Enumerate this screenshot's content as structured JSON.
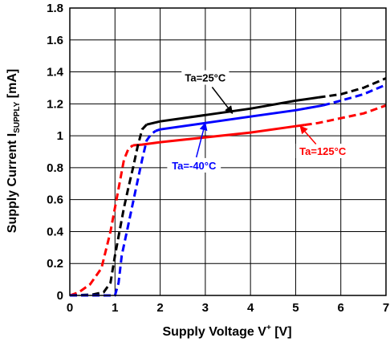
{
  "chart_data": {
    "type": "line",
    "title": "",
    "xlabel": {
      "main": "Supply Voltage V",
      "sup": "+",
      "unit": " [V]"
    },
    "ylabel": {
      "main": "Supply Current I",
      "sub": "SUPPLY",
      "unit": " [mA]"
    },
    "xlim": [
      0,
      7
    ],
    "ylim": [
      0,
      1.8
    ],
    "xticks": [
      "0",
      "1",
      "2",
      "3",
      "4",
      "5",
      "6",
      "7"
    ],
    "yticks": [
      "0",
      "0.2",
      "0.4",
      "0.6",
      "0.8",
      "1",
      "1.2",
      "1.4",
      "1.6",
      "1.8"
    ],
    "grid": true,
    "series": [
      {
        "name": "Ta=125°C",
        "color": "#ff0000",
        "solid_range": [
          1.4,
          5.2
        ],
        "points": [
          [
            0,
            0
          ],
          [
            0.2,
            0.02
          ],
          [
            0.45,
            0.07
          ],
          [
            0.7,
            0.17
          ],
          [
            0.9,
            0.4
          ],
          [
            1.0,
            0.55
          ],
          [
            1.1,
            0.7
          ],
          [
            1.2,
            0.85
          ],
          [
            1.3,
            0.92
          ],
          [
            1.4,
            0.94
          ],
          [
            1.6,
            0.945
          ],
          [
            2,
            0.96
          ],
          [
            3,
            0.99
          ],
          [
            4,
            1.02
          ],
          [
            5,
            1.06
          ],
          [
            5.5,
            1.08
          ],
          [
            6,
            1.11
          ],
          [
            6.5,
            1.14
          ],
          [
            7,
            1.19
          ]
        ]
      },
      {
        "name": "Ta=25°C",
        "color": "#000000",
        "solid_range": [
          1.7,
          5.5
        ],
        "points": [
          [
            0,
            0
          ],
          [
            0.5,
            0.005
          ],
          [
            0.75,
            0.02
          ],
          [
            0.9,
            0.08
          ],
          [
            1.0,
            0.25
          ],
          [
            1.1,
            0.4
          ],
          [
            1.2,
            0.55
          ],
          [
            1.3,
            0.68
          ],
          [
            1.4,
            0.8
          ],
          [
            1.5,
            0.93
          ],
          [
            1.6,
            1.04
          ],
          [
            1.7,
            1.07
          ],
          [
            2,
            1.09
          ],
          [
            3,
            1.13
          ],
          [
            4,
            1.17
          ],
          [
            5,
            1.22
          ],
          [
            5.5,
            1.24
          ],
          [
            6,
            1.26
          ],
          [
            6.5,
            1.3
          ],
          [
            7,
            1.36
          ]
        ]
      },
      {
        "name": "Ta=-40°C",
        "color": "#0000ff",
        "solid_range": [
          1.9,
          5.6
        ],
        "points": [
          [
            0,
            0
          ],
          [
            0.8,
            0.0
          ],
          [
            1.0,
            0.0
          ],
          [
            1.08,
            0.08
          ],
          [
            1.15,
            0.25
          ],
          [
            1.3,
            0.45
          ],
          [
            1.45,
            0.65
          ],
          [
            1.6,
            0.85
          ],
          [
            1.7,
            0.97
          ],
          [
            1.8,
            1.01
          ],
          [
            1.9,
            1.03
          ],
          [
            2,
            1.04
          ],
          [
            3,
            1.08
          ],
          [
            4,
            1.12
          ],
          [
            5,
            1.16
          ],
          [
            5.6,
            1.19
          ],
          [
            6,
            1.22
          ],
          [
            6.5,
            1.26
          ],
          [
            7,
            1.32
          ]
        ]
      }
    ],
    "annotations": [
      {
        "text": "Ta=25°C",
        "color": "#000000",
        "target": [
          3.6,
          1.14
        ],
        "label_at": [
          3.0,
          1.36
        ]
      },
      {
        "text": "Ta=-40°C",
        "color": "#0000ff",
        "target": [
          3.0,
          1.08
        ],
        "label_at": [
          2.75,
          0.81
        ]
      },
      {
        "text": "Ta=125°C",
        "color": "#ff0000",
        "target": [
          5.1,
          1.06
        ],
        "label_at": [
          5.6,
          0.9
        ]
      }
    ]
  }
}
